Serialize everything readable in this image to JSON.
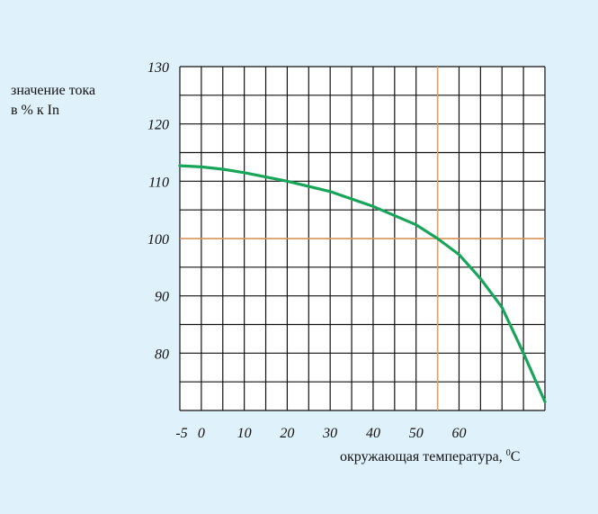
{
  "chart_data": {
    "type": "line",
    "ylabel_lines": [
      "значение тока",
      "в % к In"
    ],
    "xlabel": "окружающая температура, ",
    "xlabel_unit_super": "0",
    "xlabel_unit": "C",
    "x_ticks": [
      "-5",
      "0",
      "10",
      "20",
      "30",
      "40",
      "50",
      "60"
    ],
    "y_ticks": [
      "130",
      "120",
      "110",
      "100",
      "90",
      "80"
    ],
    "xlim": [
      -5,
      80
    ],
    "ylim": [
      70,
      130
    ],
    "grid": true,
    "reference_lines": {
      "x": 55,
      "y": 100,
      "color": "#e8a060"
    },
    "series": [
      {
        "color": "#18a55a",
        "x": [
          -5,
          0,
          5,
          10,
          20,
          30,
          40,
          50,
          55,
          60,
          65,
          70,
          75,
          80
        ],
        "y": [
          112.7,
          112.5,
          112.1,
          111.5,
          110.0,
          108.2,
          105.6,
          102.4,
          100.0,
          97.2,
          93.0,
          88.0,
          80.0,
          71.5
        ]
      }
    ]
  }
}
